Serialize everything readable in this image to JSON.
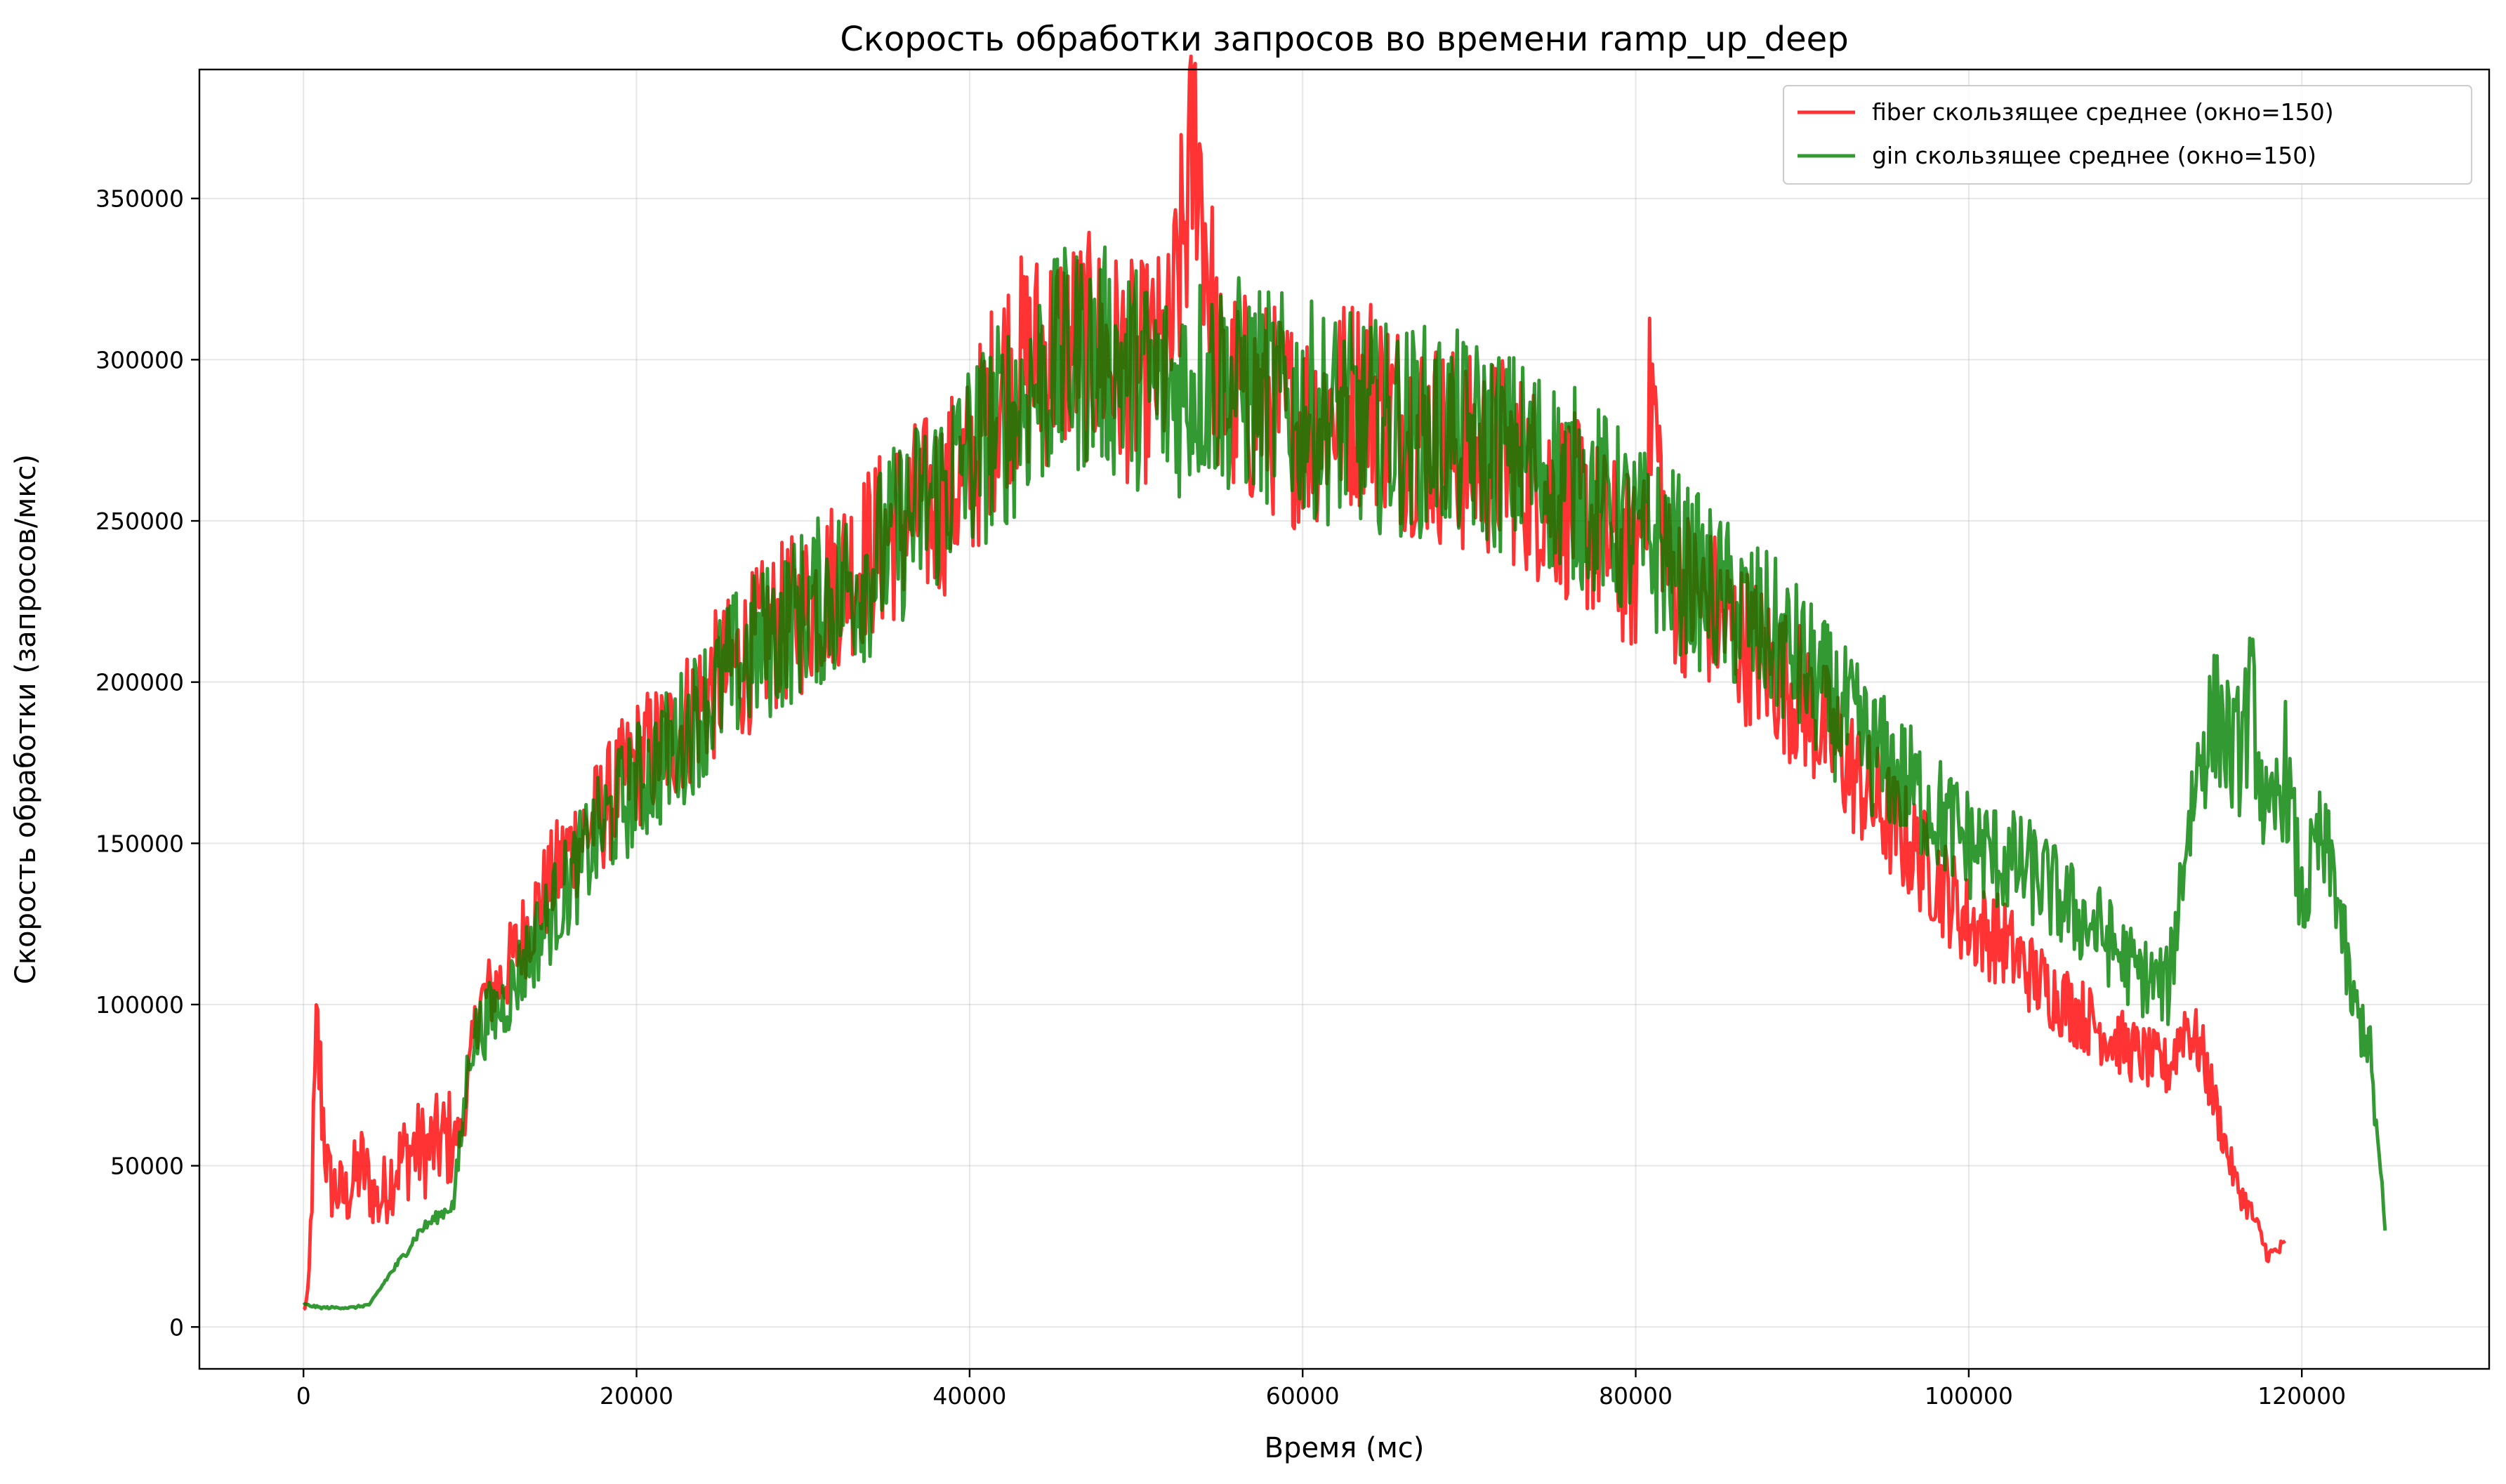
{
  "chart_data": {
    "type": "line",
    "title": "Скорость обработки запросов во времени ramp_up_deep",
    "xlabel": "Время (мс)",
    "ylabel": "Скорость обработки (запросов/мкс)",
    "xlim": [
      -6250,
      131250
    ],
    "ylim": [
      -13000,
      390000
    ],
    "xticks": [
      0,
      20000,
      40000,
      60000,
      80000,
      100000,
      120000
    ],
    "yticks": [
      0,
      50000,
      100000,
      150000,
      200000,
      250000,
      300000,
      350000
    ],
    "xtick_labels": [
      "0",
      "20000",
      "40000",
      "60000",
      "80000",
      "100000",
      "120000"
    ],
    "ytick_labels": [
      "0",
      "50000",
      "100000",
      "150000",
      "200000",
      "250000",
      "300000",
      "350000"
    ],
    "grid": true,
    "legend_position": "top-right",
    "series": [
      {
        "name": "fiber скользящее среднее (окно=150)",
        "color": "#ff0000",
        "x": [
          0,
          300,
          800,
          1500,
          2500,
          3500,
          4500,
          5500,
          6500,
          7500,
          8500,
          9500,
          10500,
          12000,
          14000,
          16000,
          18000,
          20000,
          22000,
          24000,
          26000,
          28000,
          30000,
          32000,
          34000,
          36000,
          38000,
          40000,
          42000,
          44000,
          46000,
          48000,
          50000,
          52000,
          53600,
          55000,
          58000,
          60000,
          62000,
          64000,
          66000,
          68000,
          70000,
          72000,
          74000,
          76000,
          78000,
          80000,
          81000,
          82000,
          84000,
          86000,
          88000,
          90000,
          92000,
          94000,
          96000,
          98000,
          100000,
          102000,
          104000,
          106000,
          108000,
          110000,
          112000,
          113000,
          114000,
          115000,
          116000,
          117000,
          118000,
          119000
        ],
        "values": [
          5000,
          10000,
          90000,
          45000,
          40000,
          50000,
          38000,
          50000,
          55000,
          55000,
          58000,
          60000,
          100000,
          108000,
          130000,
          148000,
          160000,
          175000,
          182000,
          195000,
          205000,
          215000,
          222000,
          232000,
          240000,
          250000,
          255000,
          265000,
          295000,
          300000,
          305000,
          302000,
          295000,
          300000,
          372000,
          290000,
          285000,
          280000,
          285000,
          290000,
          280000,
          275000,
          270000,
          270000,
          262000,
          255000,
          245000,
          235000,
          290000,
          232000,
          225000,
          215000,
          205000,
          195000,
          180000,
          165000,
          152000,
          140000,
          125000,
          120000,
          108000,
          100000,
          92000,
          85000,
          80000,
          95000,
          85000,
          65000,
          45000,
          35000,
          22000,
          25000
        ]
      },
      {
        "name": "gin скользящее среднее (окно=150)",
        "color": "#008000",
        "x": [
          0,
          1000,
          2000,
          3000,
          4000,
          5000,
          6000,
          7000,
          8000,
          9000,
          9500,
          10000,
          11000,
          12000,
          14000,
          16000,
          18000,
          20000,
          22000,
          24000,
          26000,
          28000,
          30000,
          32000,
          34000,
          36000,
          38000,
          40000,
          42000,
          44000,
          46000,
          48000,
          50000,
          52000,
          54000,
          56000,
          58000,
          60000,
          62000,
          64000,
          66000,
          68000,
          70000,
          72000,
          74000,
          76000,
          78000,
          80000,
          82000,
          84000,
          86000,
          88000,
          90000,
          92000,
          94000,
          96000,
          98000,
          100000,
          102000,
          104000,
          106000,
          108000,
          110000,
          112000,
          113000,
          114000,
          115000,
          116000,
          117000,
          118000,
          119000,
          120000,
          121000,
          122000,
          123000,
          124000,
          124500,
          125000
        ],
        "values": [
          7000,
          6000,
          6000,
          6000,
          7000,
          15000,
          22000,
          30000,
          34000,
          38000,
          60000,
          88000,
          95000,
          100000,
          120000,
          138000,
          155000,
          168000,
          178000,
          192000,
          205000,
          213000,
          222000,
          228000,
          235000,
          248000,
          258000,
          270000,
          280000,
          292000,
          300000,
          300000,
          295000,
          290000,
          295000,
          292000,
          288000,
          285000,
          282000,
          280000,
          278000,
          278000,
          275000,
          272000,
          268000,
          262000,
          255000,
          245000,
          240000,
          230000,
          222000,
          215000,
          205000,
          192000,
          180000,
          170000,
          160000,
          150000,
          145000,
          140000,
          130000,
          122000,
          110000,
          105000,
          150000,
          180000,
          190000,
          175000,
          195000,
          150000,
          175000,
          130000,
          150000,
          140000,
          100000,
          90000,
          60000,
          30000
        ]
      }
    ]
  }
}
